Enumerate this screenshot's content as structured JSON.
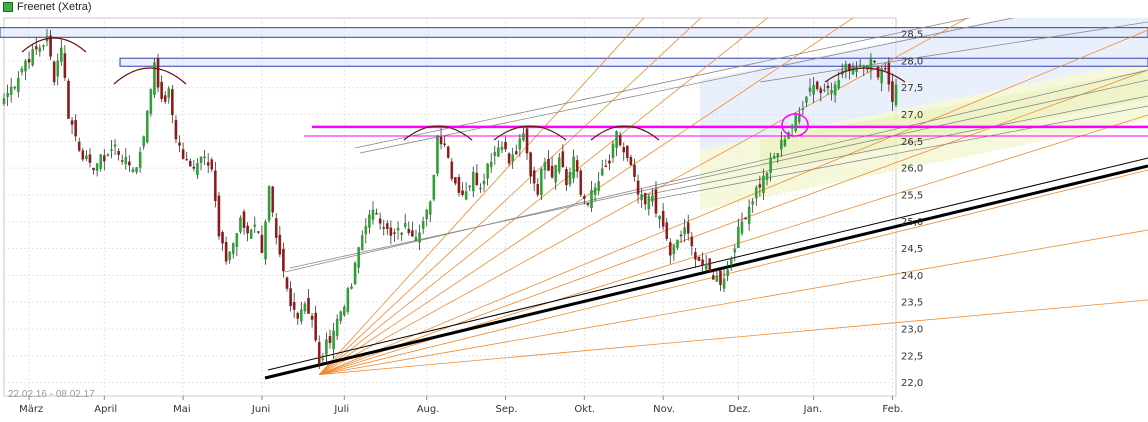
{
  "chart_data": {
    "type": "candlestick",
    "title": "Freenet (Xetra)",
    "date_range_label": "22.02.16 - 08.02.17",
    "ylim": [
      21.75,
      28.8
    ],
    "y_ticks": [
      "22,0",
      "22,5",
      "23,0",
      "23,5",
      "24,0",
      "24,5",
      "25,0",
      "25,5",
      "26,0",
      "26,5",
      "27,0",
      "27,5",
      "28,0",
      "28,5"
    ],
    "y_tick_values": [
      22.0,
      22.5,
      23.0,
      23.5,
      24.0,
      24.5,
      25.0,
      25.5,
      26.0,
      26.5,
      27.0,
      27.5,
      28.0,
      28.5
    ],
    "x_ticks": [
      "März",
      "April",
      "Mai",
      "Juni",
      "Juli",
      "Aug.",
      "Sep.",
      "Okt.",
      "Nov.",
      "Dez.",
      "Jan.",
      "Feb."
    ],
    "x_tick_index": [
      7,
      28,
      50,
      72,
      95,
      118,
      140,
      162,
      184,
      205,
      226,
      248
    ],
    "n_bars": 250,
    "legend_position": "top-left",
    "grid": true,
    "colors": {
      "up": "#2e9e35",
      "down": "#8b1a1a",
      "support": "#000000",
      "fan": "#f08a2c",
      "resistance": "#ff00ff",
      "channel": "#808080",
      "zone_blue": "#3040b0",
      "arc": "#6b1111"
    },
    "close_anchors": [
      [
        0,
        27.3
      ],
      [
        3,
        27.6
      ],
      [
        6,
        28.0
      ],
      [
        9,
        28.2
      ],
      [
        12,
        28.4
      ],
      [
        14,
        27.7
      ],
      [
        16,
        28.3
      ],
      [
        18,
        27.0
      ],
      [
        21,
        26.4
      ],
      [
        24,
        26.0
      ],
      [
        28,
        26.2
      ],
      [
        31,
        26.4
      ],
      [
        34,
        26.1
      ],
      [
        37,
        26.0
      ],
      [
        40,
        27.0
      ],
      [
        42,
        28.0
      ],
      [
        44,
        27.2
      ],
      [
        46,
        27.4
      ],
      [
        48,
        26.6
      ],
      [
        50,
        26.2
      ],
      [
        52,
        26.0
      ],
      [
        56,
        26.3
      ],
      [
        58,
        26.0
      ],
      [
        60,
        24.7
      ],
      [
        62,
        24.3
      ],
      [
        64,
        24.6
      ],
      [
        66,
        25.0
      ],
      [
        68,
        24.8
      ],
      [
        70,
        25.0
      ],
      [
        72,
        24.5
      ],
      [
        74,
        25.6
      ],
      [
        76,
        24.6
      ],
      [
        78,
        24.0
      ],
      [
        80,
        23.4
      ],
      [
        82,
        23.3
      ],
      [
        84,
        23.5
      ],
      [
        86,
        23.2
      ],
      [
        88,
        22.3
      ],
      [
        90,
        22.7
      ],
      [
        92,
        23.0
      ],
      [
        95,
        23.5
      ],
      [
        97,
        23.8
      ],
      [
        99,
        24.5
      ],
      [
        101,
        25.0
      ],
      [
        104,
        25.2
      ],
      [
        108,
        24.7
      ],
      [
        112,
        24.9
      ],
      [
        115,
        24.8
      ],
      [
        117,
        25.0
      ],
      [
        119,
        25.3
      ],
      [
        121,
        26.6
      ],
      [
        123,
        26.5
      ],
      [
        125,
        25.9
      ],
      [
        127,
        25.6
      ],
      [
        129,
        25.5
      ],
      [
        131,
        26.0
      ],
      [
        133,
        25.6
      ],
      [
        135,
        26.1
      ],
      [
        137,
        26.3
      ],
      [
        139,
        26.5
      ],
      [
        141,
        26.1
      ],
      [
        143,
        26.3
      ],
      [
        145,
        26.6
      ],
      [
        147,
        25.9
      ],
      [
        149,
        25.6
      ],
      [
        151,
        26.2
      ],
      [
        153,
        25.9
      ],
      [
        155,
        26.3
      ],
      [
        157,
        25.7
      ],
      [
        159,
        26.2
      ],
      [
        161,
        25.5
      ],
      [
        163,
        25.4
      ],
      [
        165,
        25.6
      ],
      [
        167,
        25.9
      ],
      [
        169,
        26.1
      ],
      [
        171,
        26.6
      ],
      [
        173,
        26.3
      ],
      [
        175,
        26.0
      ],
      [
        177,
        25.5
      ],
      [
        179,
        25.3
      ],
      [
        181,
        25.5
      ],
      [
        183,
        25.0
      ],
      [
        184,
        24.9
      ],
      [
        186,
        24.4
      ],
      [
        188,
        24.6
      ],
      [
        190,
        24.9
      ],
      [
        192,
        24.5
      ],
      [
        194,
        24.3
      ],
      [
        196,
        24.1
      ],
      [
        198,
        24.0
      ],
      [
        200,
        23.9
      ],
      [
        202,
        24.1
      ],
      [
        204,
        24.6
      ],
      [
        206,
        25.0
      ],
      [
        208,
        25.3
      ],
      [
        210,
        25.6
      ],
      [
        212,
        25.8
      ],
      [
        214,
        26.1
      ],
      [
        216,
        26.3
      ],
      [
        218,
        26.6
      ],
      [
        220,
        26.8
      ],
      [
        222,
        27.0
      ],
      [
        224,
        27.4
      ],
      [
        226,
        27.6
      ],
      [
        228,
        27.4
      ],
      [
        230,
        27.6
      ],
      [
        232,
        27.5
      ],
      [
        234,
        27.8
      ],
      [
        236,
        27.9
      ],
      [
        238,
        27.9
      ],
      [
        240,
        28.0
      ],
      [
        242,
        28.0
      ],
      [
        244,
        27.8
      ],
      [
        246,
        27.9
      ],
      [
        248,
        27.3
      ],
      [
        249,
        27.5
      ]
    ],
    "horizontal_lines": [
      {
        "name": "resistance-magenta",
        "value": 26.77,
        "color": "#ff00ff",
        "width": 2.5
      },
      {
        "name": "resistance-magenta-thin",
        "value": 26.6,
        "color": "#ff00ff",
        "width": 1
      }
    ],
    "horizontal_zones": [
      {
        "name": "top-zone",
        "from": 28.44,
        "to": 28.62,
        "color": "#3040b0"
      },
      {
        "name": "mid-zone",
        "from": 27.9,
        "to": 28.05,
        "color": "#3040b0"
      }
    ]
  }
}
